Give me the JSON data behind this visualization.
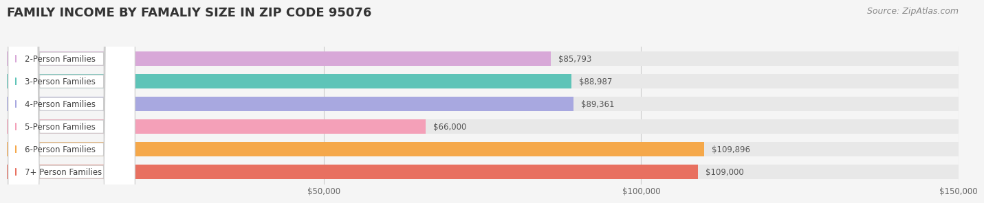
{
  "title": "FAMILY INCOME BY FAMALIY SIZE IN ZIP CODE 95076",
  "source": "Source: ZipAtlas.com",
  "categories": [
    "2-Person Families",
    "3-Person Families",
    "4-Person Families",
    "5-Person Families",
    "6-Person Families",
    "7+ Person Families"
  ],
  "values": [
    85793,
    88987,
    89361,
    66000,
    109896,
    109000
  ],
  "bar_colors": [
    "#d8a8d8",
    "#5ec4b8",
    "#a8a8e0",
    "#f4a0b8",
    "#f5a84a",
    "#e87060"
  ],
  "value_labels": [
    "$85,793",
    "$88,987",
    "$89,361",
    "$66,000",
    "$109,896",
    "$109,000"
  ],
  "xlim": [
    0,
    150000
  ],
  "xticks": [
    0,
    50000,
    100000,
    150000
  ],
  "xtick_labels": [
    "",
    "$50,000",
    "$100,000",
    "$150,000"
  ],
  "background_color": "#f5f5f5",
  "bar_background_color": "#e8e8e8",
  "title_fontsize": 13,
  "source_fontsize": 9,
  "label_fontsize": 8.5,
  "value_fontsize": 8.5,
  "bar_height": 0.62
}
